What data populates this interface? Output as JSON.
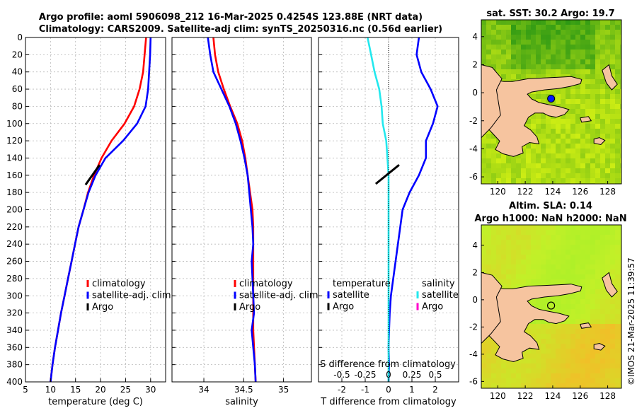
{
  "header": {
    "line1": "Argo profile: aoml 5906098_212 16-Mar-2025 0.4254S 123.88E (NRT data)",
    "line2": "Climatology: CARS2009. Satellite-adj clim: synTS_20250316.nc (0.56d earlier)"
  },
  "footer": {
    "credit": "©IMOS 21-Mar-2025 11:39:57"
  },
  "colors": {
    "red": "#ff0000",
    "blue": "#0000ff",
    "black": "#000000",
    "cyan": "#22e8ee",
    "magenta": "#ff00cc",
    "land": "#f6c49f"
  },
  "chart_data": [
    {
      "type": "line",
      "id": "temperature",
      "xlabel": "temperature (deg C)",
      "xlim": [
        5,
        33
      ],
      "ylim": [
        0,
        400
      ],
      "xticks": [
        5,
        10,
        15,
        20,
        25,
        30
      ],
      "yticks": [
        0,
        20,
        40,
        60,
        80,
        100,
        120,
        140,
        160,
        180,
        200,
        220,
        240,
        260,
        280,
        300,
        320,
        340,
        360,
        380,
        400
      ],
      "legend": [
        "climatology",
        "satellite-adj. clim",
        "Argo"
      ],
      "series": [
        {
          "name": "climatology",
          "color": "red",
          "points": [
            [
              29.1,
              0
            ],
            [
              28.8,
              20
            ],
            [
              28.5,
              40
            ],
            [
              27.8,
              60
            ],
            [
              26.7,
              80
            ],
            [
              24.8,
              100
            ],
            [
              22.2,
              120
            ],
            [
              20.2,
              140
            ],
            [
              18.7,
              160
            ],
            [
              17.5,
              180
            ],
            [
              16.6,
              200
            ],
            [
              15.6,
              220
            ],
            [
              14.9,
              240
            ],
            [
              14.2,
              260
            ],
            [
              13.5,
              280
            ],
            [
              12.8,
              300
            ],
            [
              12.1,
              320
            ],
            [
              11.5,
              340
            ],
            [
              10.9,
              360
            ],
            [
              10.4,
              380
            ],
            [
              10.0,
              400
            ]
          ]
        },
        {
          "name": "satellite-adj. clim",
          "color": "blue",
          "points": [
            [
              30.0,
              0
            ],
            [
              29.9,
              20
            ],
            [
              29.7,
              40
            ],
            [
              29.5,
              60
            ],
            [
              29.0,
              80
            ],
            [
              27.3,
              100
            ],
            [
              24.5,
              120
            ],
            [
              21.0,
              140
            ],
            [
              19.0,
              160
            ],
            [
              17.6,
              180
            ],
            [
              16.6,
              200
            ],
            [
              15.6,
              220
            ],
            [
              14.9,
              240
            ],
            [
              14.2,
              260
            ],
            [
              13.5,
              280
            ],
            [
              12.8,
              300
            ],
            [
              12.1,
              320
            ],
            [
              11.5,
              340
            ],
            [
              10.9,
              360
            ],
            [
              10.4,
              380
            ],
            [
              10.0,
              400
            ]
          ]
        },
        {
          "name": "Argo",
          "color": "black",
          "points": [
            [
              17.0,
              171
            ],
            [
              19.8,
              148
            ]
          ]
        }
      ]
    },
    {
      "type": "line",
      "id": "salinity",
      "xlabel": "salinity",
      "xlim": [
        33.6,
        35.35
      ],
      "ylim": [
        0,
        400
      ],
      "xticks": [
        34,
        34.5,
        35
      ],
      "legend": [
        "climatology",
        "satellite-adj. clim",
        "Argo"
      ],
      "series": [
        {
          "name": "climatology",
          "color": "red",
          "points": [
            [
              34.12,
              0
            ],
            [
              34.14,
              20
            ],
            [
              34.18,
              40
            ],
            [
              34.25,
              60
            ],
            [
              34.33,
              80
            ],
            [
              34.42,
              100
            ],
            [
              34.48,
              120
            ],
            [
              34.52,
              140
            ],
            [
              34.55,
              160
            ],
            [
              34.58,
              180
            ],
            [
              34.61,
              200
            ],
            [
              34.62,
              220
            ],
            [
              34.62,
              240
            ],
            [
              34.62,
              260
            ],
            [
              34.62,
              280
            ],
            [
              34.62,
              300
            ],
            [
              34.62,
              320
            ],
            [
              34.62,
              340
            ],
            [
              34.63,
              360
            ],
            [
              34.64,
              380
            ],
            [
              34.65,
              400
            ]
          ]
        },
        {
          "name": "satellite-adj. clim",
          "color": "blue",
          "points": [
            [
              34.05,
              0
            ],
            [
              34.08,
              20
            ],
            [
              34.12,
              40
            ],
            [
              34.22,
              60
            ],
            [
              34.32,
              80
            ],
            [
              34.4,
              100
            ],
            [
              34.46,
              120
            ],
            [
              34.51,
              140
            ],
            [
              34.55,
              160
            ],
            [
              34.57,
              180
            ],
            [
              34.59,
              200
            ],
            [
              34.61,
              220
            ],
            [
              34.62,
              240
            ],
            [
              34.6,
              260
            ],
            [
              34.61,
              280
            ],
            [
              34.62,
              300
            ],
            [
              34.63,
              320
            ],
            [
              34.6,
              340
            ],
            [
              34.62,
              360
            ],
            [
              34.64,
              380
            ],
            [
              34.65,
              400
            ]
          ]
        }
      ]
    },
    {
      "type": "line",
      "id": "differences",
      "xlabel": "T difference from climatology",
      "xlabel_top": "S difference from climatology",
      "xlim": [
        -3,
        3
      ],
      "ylim": [
        0,
        400
      ],
      "xticks": [
        -2,
        -1,
        0,
        1,
        2
      ],
      "top_ticks": [
        {
          "label": "-0.5",
          "value": -0.5
        },
        {
          "label": "-0.25",
          "value": -0.25
        },
        {
          "label": "0",
          "value": 0
        },
        {
          "label": "0.25",
          "value": 0.25
        },
        {
          "label": "0.5",
          "value": 0.5
        }
      ],
      "top_scale": 4,
      "legend_titles": [
        "temperature",
        "salinity"
      ],
      "legend": [
        {
          "label": "satellite",
          "color": "blue"
        },
        {
          "label": "Argo",
          "color": "black"
        },
        {
          "label": "satellite",
          "color": "cyan"
        },
        {
          "label": "Argo",
          "color": "magenta"
        }
      ],
      "series": [
        {
          "name": "T satellite",
          "color": "blue",
          "points": [
            [
              1.3,
              0
            ],
            [
              1.2,
              20
            ],
            [
              1.4,
              40
            ],
            [
              1.8,
              60
            ],
            [
              2.1,
              80
            ],
            [
              1.9,
              100
            ],
            [
              1.6,
              120
            ],
            [
              1.6,
              140
            ],
            [
              1.3,
              160
            ],
            [
              0.9,
              180
            ],
            [
              0.6,
              200
            ],
            [
              0.5,
              220
            ],
            [
              0.4,
              240
            ],
            [
              0.3,
              260
            ],
            [
              0.2,
              280
            ],
            [
              0.1,
              300
            ],
            [
              0.05,
              320
            ],
            [
              0.02,
              340
            ],
            [
              0.0,
              360
            ],
            [
              0.02,
              380
            ],
            [
              0.0,
              400
            ]
          ]
        },
        {
          "name": "S satellite",
          "color": "cyan",
          "points": [
            [
              -0.9,
              0
            ],
            [
              -0.75,
              20
            ],
            [
              -0.6,
              40
            ],
            [
              -0.4,
              60
            ],
            [
              -0.3,
              80
            ],
            [
              -0.25,
              100
            ],
            [
              -0.1,
              120
            ],
            [
              -0.05,
              140
            ],
            [
              0.0,
              160
            ],
            [
              0.0,
              180
            ],
            [
              0.0,
              200
            ],
            [
              0.0,
              220
            ],
            [
              0.0,
              240
            ],
            [
              0.0,
              260
            ],
            [
              0.0,
              280
            ],
            [
              0.0,
              300
            ],
            [
              0.0,
              320
            ],
            [
              0.0,
              340
            ],
            [
              0.0,
              360
            ],
            [
              0.0,
              380
            ],
            [
              0.0,
              400
            ]
          ]
        },
        {
          "name": "T Argo",
          "color": "black",
          "points": [
            [
              -0.55,
              170
            ],
            [
              0.45,
              148
            ]
          ]
        }
      ]
    },
    {
      "type": "heatmap",
      "id": "sst_map",
      "title": "sat. SST: 30.2 Argo: 19.7",
      "xticks": [
        120,
        122,
        124,
        126,
        128
      ],
      "yticks": [
        4,
        2,
        0,
        -2,
        -4,
        -6
      ],
      "xlim": [
        118.8,
        129.0
      ],
      "ylim": [
        -6.5,
        5.2
      ],
      "marker": {
        "lon": 123.88,
        "lat": -0.4254
      }
    },
    {
      "type": "heatmap",
      "id": "sla_map",
      "title": "Altim. SLA: 0.14",
      "subtitle": "Argo h1000: NaN h2000: NaN",
      "xticks": [
        120,
        122,
        124,
        126,
        128
      ],
      "yticks": [
        4,
        2,
        0,
        -2,
        -4,
        -6
      ],
      "xlim": [
        118.8,
        129.0
      ],
      "ylim": [
        -6.5,
        5.5
      ],
      "marker": {
        "lon": 123.88,
        "lat": -0.4254
      }
    }
  ]
}
